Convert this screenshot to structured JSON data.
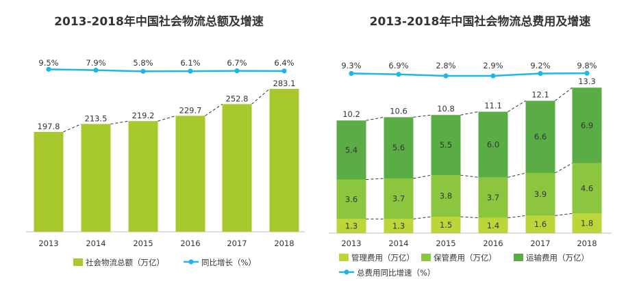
{
  "chart_data": [
    {
      "type": "bar",
      "title": "2013-2018年中国社会物流总额及增速",
      "categories": [
        "2013",
        "2014",
        "2015",
        "2016",
        "2017",
        "2018"
      ],
      "series": [
        {
          "name": "社会物流总额（万亿）",
          "values": [
            197.8,
            213.5,
            219.2,
            229.7,
            252.8,
            283.1
          ],
          "color": "#a8c92e"
        },
        {
          "name": "同比增长（%）",
          "type": "line",
          "values": [
            9.5,
            7.9,
            5.8,
            6.1,
            6.7,
            6.4
          ],
          "labels": [
            "9.5%",
            "7.9%",
            "5.8%",
            "6.1%",
            "6.7%",
            "6.4%"
          ],
          "color": "#1cb7e6"
        }
      ]
    },
    {
      "type": "bar",
      "stacked": true,
      "title": "2013-2018年中国社会物流总费用及增速",
      "categories": [
        "2013",
        "2014",
        "2015",
        "2016",
        "2017",
        "2018"
      ],
      "series": [
        {
          "name": "管理费用（万亿）",
          "values": [
            1.3,
            1.3,
            1.5,
            1.4,
            1.6,
            1.8
          ],
          "color": "#bcd63a"
        },
        {
          "name": "保管费用（万亿）",
          "values": [
            3.6,
            3.7,
            3.8,
            3.7,
            3.9,
            4.6
          ],
          "color": "#8cc63e"
        },
        {
          "name": "运输费用（万亿）",
          "values": [
            5.4,
            5.6,
            5.5,
            6.0,
            6.6,
            6.9
          ],
          "color": "#5aac45"
        },
        {
          "name": "总费用同比增速（%）",
          "type": "line",
          "values": [
            9.3,
            6.9,
            2.8,
            2.9,
            9.2,
            9.8
          ],
          "labels": [
            "9.3%",
            "6.9%",
            "2.8%",
            "2.9%",
            "9.2%",
            "9.8%"
          ],
          "color": "#1cb7e6"
        }
      ],
      "totals": [
        10.2,
        10.6,
        10.8,
        11.1,
        12.1,
        13.3
      ]
    }
  ]
}
